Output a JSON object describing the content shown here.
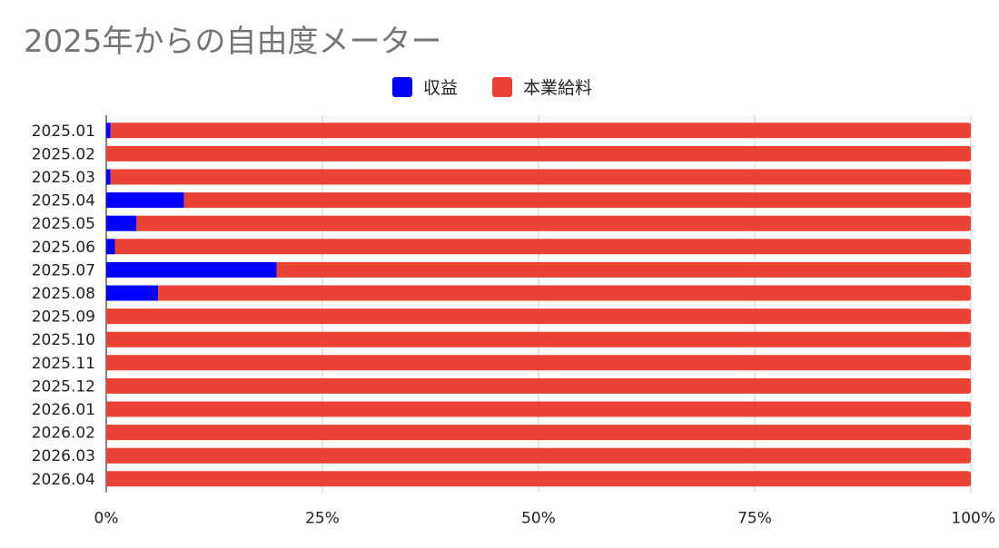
{
  "chart_data": {
    "type": "bar",
    "orientation": "horizontal",
    "stacked": "percent",
    "title": "2025年からの自由度メーター",
    "legend_position": "top",
    "categories": [
      "2025.01",
      "2025.02",
      "2025.03",
      "2025.04",
      "2025.05",
      "2025.06",
      "2025.07",
      "2025.08",
      "2025.09",
      "2025.10",
      "2025.11",
      "2025.12",
      "2026.01",
      "2026.02",
      "2026.03",
      "2026.04"
    ],
    "series": [
      {
        "name": "収益",
        "color": "#0000ff",
        "values": [
          0.5,
          0,
          0.5,
          9,
          3.5,
          1,
          19.7,
          6,
          0,
          0,
          0,
          0,
          0,
          0,
          0,
          0
        ]
      },
      {
        "name": "本業給料",
        "color": "#ea4335",
        "values": [
          99.5,
          100,
          99.5,
          91,
          96.5,
          99,
          80.3,
          94,
          100,
          100,
          100,
          100,
          100,
          100,
          100,
          100
        ]
      }
    ],
    "xlim": [
      0,
      100
    ],
    "x_ticks": [
      "0%",
      "25%",
      "50%",
      "75%",
      "100%"
    ],
    "grid": true
  }
}
